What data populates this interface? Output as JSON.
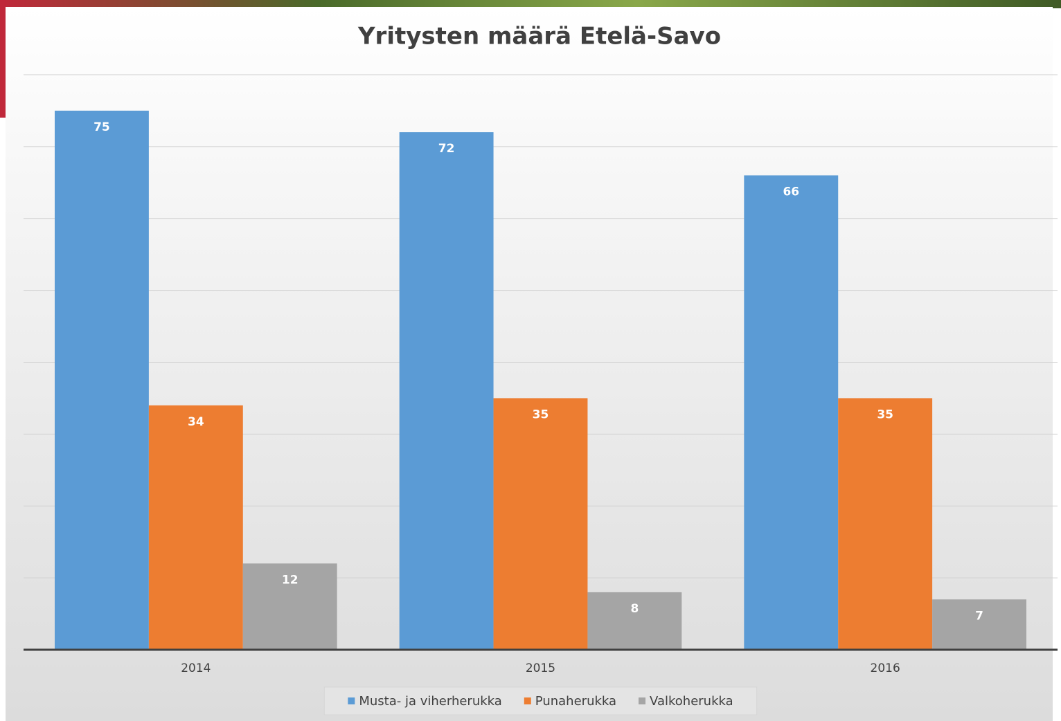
{
  "chart_data": {
    "type": "bar",
    "title": "Yritysten määrä Etelä-Savo",
    "categories": [
      "2014",
      "2015",
      "2016"
    ],
    "series": [
      {
        "name": "Musta- ja viherherukka",
        "color": "#5b9bd5",
        "values": [
          75,
          72,
          66
        ]
      },
      {
        "name": "Punaherukka",
        "color": "#ed7d31",
        "values": [
          34,
          35,
          35
        ]
      },
      {
        "name": "Valkoherukka",
        "color": "#a5a5a5",
        "values": [
          12,
          8,
          7
        ]
      }
    ],
    "ylim": [
      0,
      80
    ],
    "yticks": [
      0,
      10,
      20,
      30,
      40,
      50,
      60,
      70,
      80
    ],
    "grid": true,
    "legend": "bottom"
  }
}
